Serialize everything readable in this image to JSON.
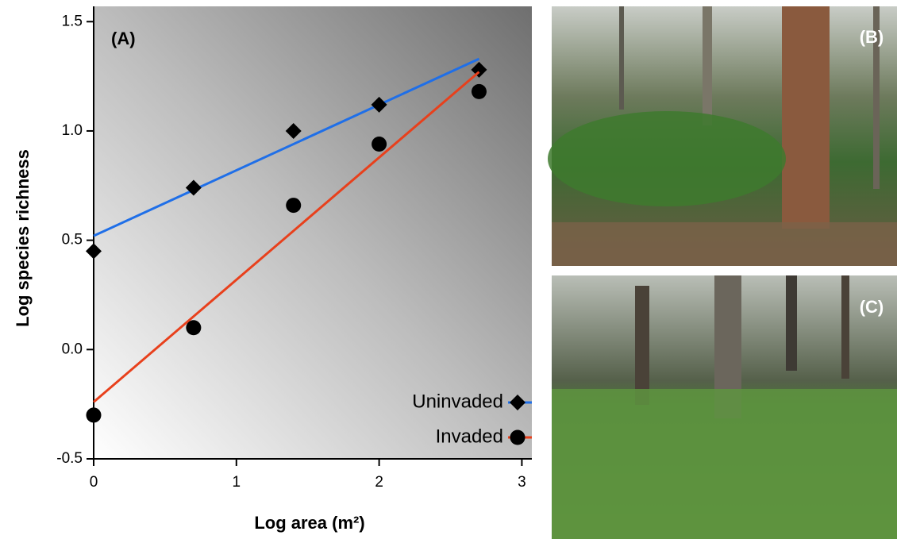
{
  "chart_data": {
    "type": "scatter",
    "panel_label": "(A)",
    "x_label": "Log area (m²)",
    "y_label": "Log species richness",
    "xlim": [
      0,
      3.07
    ],
    "ylim": [
      -0.5,
      1.57
    ],
    "xticks": [
      0,
      1,
      2,
      3
    ],
    "yticks": [
      -0.5,
      {
        "value": 0,
        "label": "0.0"
      },
      0.5,
      {
        "value": 1,
        "label": "1.0"
      },
      1.5
    ],
    "legend": "lower right",
    "series": [
      {
        "name": "Uninvaded",
        "marker": "diamond",
        "color": "#000000",
        "line_color": "#1f6fe8",
        "x": [
          0,
          0.7,
          1.4,
          2,
          2.7
        ],
        "values": [
          0.45,
          0.74,
          1.0,
          1.12,
          1.28
        ],
        "fit": {
          "x": [
            0,
            2.7
          ],
          "values": [
            0.52,
            1.33
          ]
        }
      },
      {
        "name": "Invaded",
        "marker": "circle",
        "color": "#000000",
        "line_color": "#e8401c",
        "x": [
          0,
          0.7,
          1.4,
          2,
          2.7
        ],
        "values": [
          -0.3,
          0.1,
          0.66,
          0.94,
          1.18
        ],
        "fit": {
          "x": [
            0,
            2.7
          ],
          "values": [
            -0.24,
            1.27
          ]
        }
      }
    ]
  },
  "photos": [
    {
      "label": "(B)"
    },
    {
      "label": "(C)"
    }
  ]
}
